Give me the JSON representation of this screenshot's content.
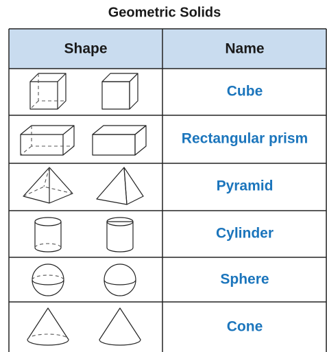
{
  "title": "Geometric Solids",
  "table": {
    "header": [
      "Shape",
      "Name"
    ],
    "rows": [
      {
        "name": "Cube"
      },
      {
        "name": "Rectangular prism"
      },
      {
        "name": "Pyramid"
      },
      {
        "name": "Cylinder"
      },
      {
        "name": "Sphere"
      },
      {
        "name": "Cone"
      }
    ]
  }
}
